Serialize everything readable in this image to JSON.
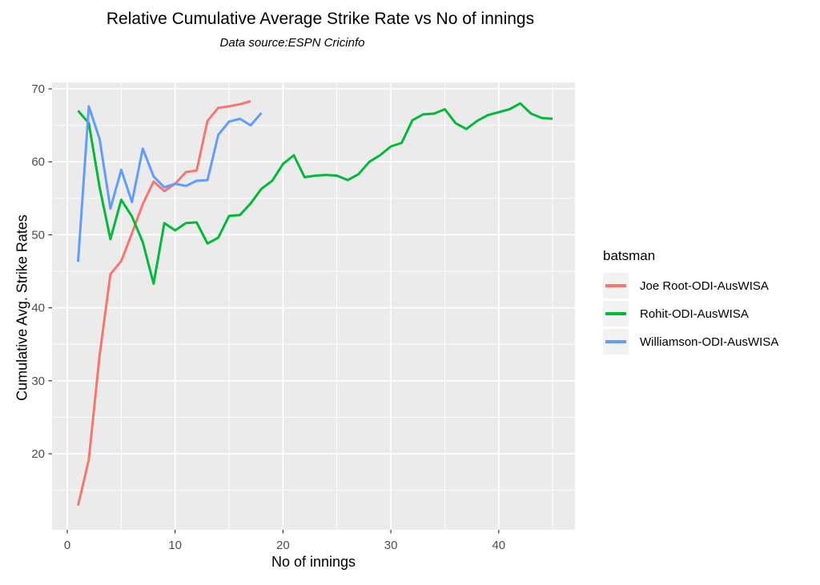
{
  "header": {
    "title": "Relative Cumulative Average Strike Rate vs No of innings",
    "subtitle": "Data source:ESPN Cricinfo"
  },
  "chart_data": {
    "type": "line",
    "title": "Relative Cumulative Average Strike Rate vs No of innings",
    "subtitle": "Data source:ESPN Cricinfo",
    "xlabel": "No of innings",
    "ylabel": "Cumulative Avg. Strike Rates",
    "x_ticks": [
      0,
      10,
      20,
      30,
      40
    ],
    "x_minor_ticks": [
      5,
      15,
      25,
      35,
      45
    ],
    "y_ticks": [
      20,
      30,
      40,
      50,
      60,
      70
    ],
    "y_minor_ticks": [
      15,
      25,
      35,
      45,
      55,
      65
    ],
    "xlim": [
      -1.4,
      47.1
    ],
    "ylim": [
      9.6,
      70.9
    ],
    "grid": true,
    "legend_title": "batsman",
    "legend_position": "right",
    "colors": {
      "panel_background": "#EBEBEB",
      "gridline": "#FFFFFF",
      "tick_mark": "#333333",
      "tick_label": "#4D4D4D",
      "legend_key_background": "#F2F2F2"
    },
    "x_start": 1,
    "x_step": 1,
    "series": [
      {
        "name": "Joe Root-ODI-AusWISA",
        "color": "#F8766D",
        "values": [
          12.9,
          19.2,
          33.5,
          44.6,
          46.4,
          50.2,
          54.2,
          57.3,
          56.0,
          57.0,
          58.6,
          58.8,
          65.6,
          67.4,
          67.6,
          67.9,
          68.3
        ]
      },
      {
        "name": "Rohit-ODI-AusWISA",
        "color": "#00BA38",
        "values": [
          67.0,
          65.3,
          56.5,
          49.4,
          54.8,
          52.5,
          49.0,
          43.3,
          51.6,
          50.6,
          51.6,
          51.7,
          48.8,
          49.6,
          52.6,
          52.7,
          54.3,
          56.3,
          57.4,
          59.7,
          60.9,
          57.9,
          58.1,
          58.2,
          58.1,
          57.5,
          58.3,
          60.0,
          60.9,
          62.1,
          62.6,
          65.7,
          66.5,
          66.6,
          67.2,
          65.3,
          64.5,
          65.6,
          66.4,
          66.8,
          67.2,
          68.0,
          66.6,
          66.0,
          65.9
        ]
      },
      {
        "name": "Williamson-ODI-AusWISA",
        "color": "#619CFF",
        "values": [
          46.3,
          67.6,
          63.1,
          53.6,
          58.9,
          54.5,
          61.8,
          58.0,
          56.5,
          57.0,
          56.7,
          57.4,
          57.5,
          63.7,
          65.5,
          65.9,
          65.0,
          66.7
        ]
      }
    ]
  }
}
